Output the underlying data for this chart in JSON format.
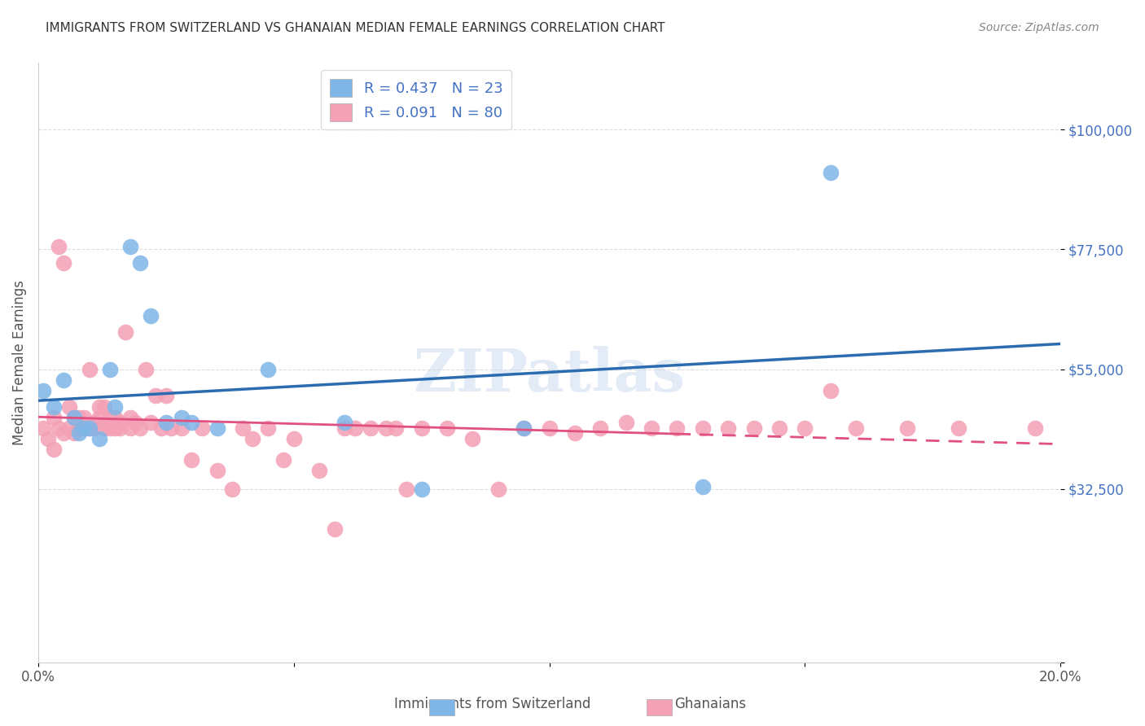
{
  "title": "IMMIGRANTS FROM SWITZERLAND VS GHANAIAN MEDIAN FEMALE EARNINGS CORRELATION CHART",
  "source": "Source: ZipAtlas.com",
  "xlabel": "",
  "ylabel": "Median Female Earnings",
  "xlim": [
    0.0,
    0.2
  ],
  "ylim": [
    0,
    112500
  ],
  "yticks": [
    0,
    32500,
    55000,
    77500,
    100000
  ],
  "ytick_labels": [
    "",
    "$32,500",
    "$55,000",
    "$77,500",
    "$100,000"
  ],
  "xticks": [
    0.0,
    0.05,
    0.1,
    0.15,
    0.2
  ],
  "xtick_labels": [
    "0.0%",
    "",
    "",
    "",
    "20.0%"
  ],
  "series1_label": "Immigrants from Switzerland",
  "series2_label": "Ghanaians",
  "series1_R": 0.437,
  "series1_N": 23,
  "series2_R": 0.091,
  "series2_N": 80,
  "series1_color": "#7eb6e8",
  "series2_color": "#f4a0b5",
  "series1_line_color": "#2b6cb0",
  "series2_line_color": "#e05080",
  "title_color": "#333333",
  "title_fontsize": 11,
  "watermark": "ZIPatlas",
  "background_color": "#ffffff",
  "series1_x": [
    0.001,
    0.003,
    0.005,
    0.007,
    0.008,
    0.009,
    0.01,
    0.012,
    0.014,
    0.015,
    0.018,
    0.02,
    0.022,
    0.025,
    0.028,
    0.03,
    0.035,
    0.045,
    0.06,
    0.075,
    0.095,
    0.13,
    0.155
  ],
  "series1_y": [
    51000,
    48000,
    53000,
    46000,
    43000,
    44000,
    44000,
    42000,
    55000,
    48000,
    78000,
    75000,
    65000,
    45000,
    46000,
    45000,
    44000,
    55000,
    45000,
    32500,
    44000,
    33000,
    92000
  ],
  "series2_x": [
    0.001,
    0.002,
    0.003,
    0.003,
    0.004,
    0.004,
    0.005,
    0.005,
    0.006,
    0.006,
    0.007,
    0.007,
    0.008,
    0.008,
    0.009,
    0.009,
    0.01,
    0.01,
    0.011,
    0.011,
    0.012,
    0.012,
    0.013,
    0.013,
    0.014,
    0.014,
    0.015,
    0.015,
    0.016,
    0.016,
    0.017,
    0.018,
    0.018,
    0.019,
    0.02,
    0.021,
    0.022,
    0.023,
    0.024,
    0.025,
    0.026,
    0.028,
    0.03,
    0.032,
    0.035,
    0.038,
    0.04,
    0.042,
    0.045,
    0.048,
    0.05,
    0.055,
    0.058,
    0.06,
    0.062,
    0.065,
    0.068,
    0.07,
    0.072,
    0.075,
    0.08,
    0.085,
    0.09,
    0.095,
    0.1,
    0.105,
    0.11,
    0.115,
    0.12,
    0.125,
    0.13,
    0.135,
    0.14,
    0.145,
    0.15,
    0.155,
    0.16,
    0.17,
    0.18,
    0.195
  ],
  "series2_y": [
    44000,
    42000,
    46000,
    40000,
    44000,
    78000,
    43000,
    75000,
    48000,
    44000,
    46000,
    43000,
    46000,
    44000,
    46000,
    44000,
    55000,
    44000,
    45000,
    44000,
    48000,
    46000,
    48000,
    44000,
    46000,
    44000,
    44000,
    46000,
    45000,
    44000,
    62000,
    46000,
    44000,
    45000,
    44000,
    55000,
    45000,
    50000,
    44000,
    50000,
    44000,
    44000,
    38000,
    44000,
    36000,
    32500,
    44000,
    42000,
    44000,
    38000,
    42000,
    36000,
    25000,
    44000,
    44000,
    44000,
    44000,
    44000,
    32500,
    44000,
    44000,
    42000,
    32500,
    44000,
    44000,
    43000,
    44000,
    45000,
    44000,
    44000,
    44000,
    44000,
    44000,
    44000,
    44000,
    51000,
    44000,
    44000,
    44000,
    44000
  ]
}
